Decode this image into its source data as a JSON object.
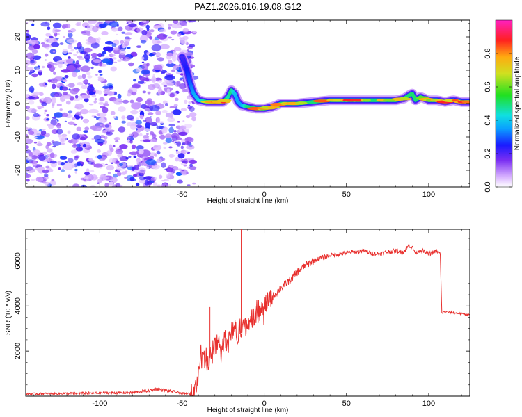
{
  "title": "PAZ1.2026.016.19.08.G12",
  "colors": {
    "snr_line": "#e8302e",
    "track_core": "#ff2020",
    "scatter": "#7b2ff2",
    "frame": "#000000",
    "background": "#ffffff"
  },
  "chart_data": [
    {
      "type": "heatmap",
      "name": "spectrogram",
      "xlabel": "Height of straight line (km)",
      "ylabel": "Frequency (Hz)",
      "xlim": [
        -145,
        125
      ],
      "ylim": [
        -25,
        25
      ],
      "xticks": [
        -100,
        -50,
        0,
        50,
        100
      ],
      "yticks": [
        -20,
        -10,
        0,
        10,
        20
      ],
      "noise_region_x": [
        -145,
        -45
      ],
      "ridge": {
        "x": [
          -50,
          -47,
          -45,
          -43,
          -40,
          -35,
          -30,
          -25,
          -22,
          -20,
          -18,
          -16,
          -14,
          -10,
          -5,
          0,
          5,
          10,
          20,
          30,
          40,
          50,
          60,
          70,
          80,
          85,
          88,
          90,
          92,
          95,
          100,
          105,
          110,
          115,
          120,
          125
        ],
        "freq": [
          14,
          10,
          6,
          3,
          1,
          0.5,
          0.5,
          0.5,
          2,
          4,
          3,
          0.5,
          -0.5,
          -1,
          -1.5,
          -1.5,
          -1,
          0,
          0,
          0.5,
          1,
          1,
          1,
          1,
          1,
          1.5,
          2.5,
          3,
          1,
          2,
          1,
          1,
          0.5,
          1,
          0.5,
          0.5
        ],
        "amplitude": [
          0.2,
          0.25,
          0.3,
          0.35,
          0.4,
          0.5,
          0.7,
          0.8,
          0.45,
          0.5,
          0.4,
          0.35,
          0.35,
          0.5,
          0.6,
          0.65,
          0.7,
          0.75,
          0.8,
          0.75,
          0.75,
          0.8,
          0.8,
          0.85,
          0.8,
          0.6,
          0.5,
          0.5,
          0.5,
          0.55,
          0.6,
          0.6,
          0.7,
          0.65,
          0.6,
          0.6
        ]
      },
      "colorbar": {
        "label": "Normalized spectral amplitude",
        "ticks": [
          "0.0",
          "0.2",
          "0.4",
          "0.6",
          "0.8"
        ],
        "range": [
          0,
          1
        ]
      }
    },
    {
      "type": "line",
      "name": "snr",
      "xlabel": "Height of straight line (km)",
      "ylabel": "SNR (10 * v/v)",
      "xlim": [
        -145,
        125
      ],
      "ylim": [
        0,
        7400
      ],
      "xticks": [
        -100,
        -50,
        0,
        50,
        100
      ],
      "yticks": [
        2000,
        4000,
        6000
      ],
      "series": [
        {
          "name": "SNR",
          "x": [
            -145,
            -120,
            -100,
            -80,
            -70,
            -65,
            -60,
            -55,
            -50,
            -45,
            -42,
            -40,
            -38,
            -36,
            -34,
            -32,
            -30,
            -28,
            -26,
            -24,
            -22,
            -20,
            -18,
            -16,
            -15,
            -14,
            -12,
            -10,
            -8,
            -5,
            0,
            5,
            10,
            15,
            20,
            25,
            30,
            35,
            40,
            45,
            50,
            55,
            60,
            65,
            70,
            75,
            80,
            85,
            88,
            90,
            92,
            95,
            100,
            105,
            107,
            108,
            110,
            115,
            120,
            125
          ],
          "y": [
            100,
            120,
            140,
            160,
            250,
            320,
            250,
            200,
            120,
            100,
            300,
            900,
            2200,
            1800,
            1400,
            2000,
            2300,
            2500,
            1900,
            2700,
            2200,
            2900,
            3000,
            2600,
            3100,
            2800,
            3000,
            3300,
            3500,
            3700,
            4000,
            4400,
            4800,
            5100,
            5500,
            5800,
            6000,
            6150,
            6250,
            6300,
            6350,
            6400,
            6450,
            6350,
            6300,
            6400,
            6450,
            6400,
            6700,
            6600,
            6350,
            6500,
            6300,
            6450,
            6300,
            3700,
            3750,
            3700,
            3650,
            3600
          ],
          "spikes": [
            {
              "x": -14,
              "y": 7400
            },
            {
              "x": -33,
              "y": 3950
            }
          ]
        }
      ]
    }
  ]
}
